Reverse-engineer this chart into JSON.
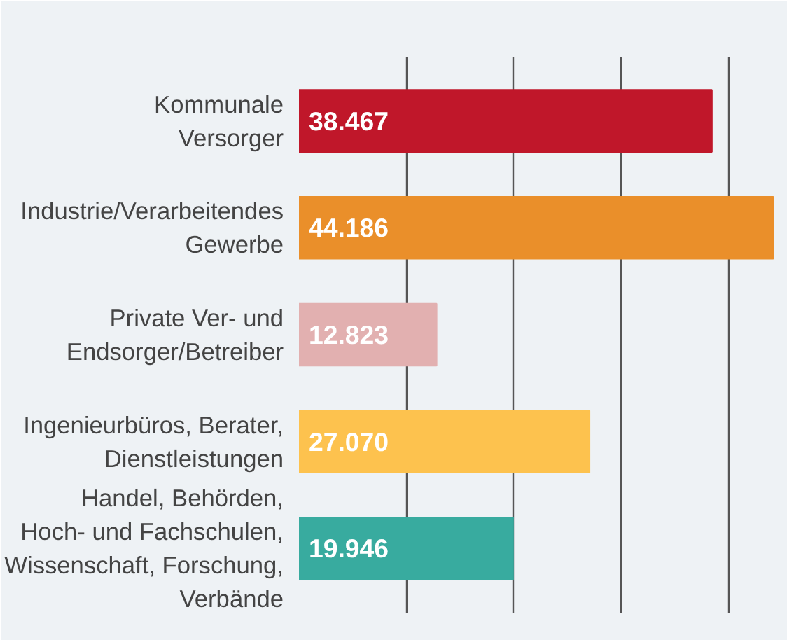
{
  "chart_data": {
    "type": "bar",
    "orientation": "horizontal",
    "categories": [
      "Kommunale\nVersorger",
      "Industrie/Verarbeitendes\nGewerbe",
      "Private Ver- und\nEndsorger/Betreiber",
      "Ingenieurbüros, Berater,\nDienstleistungen",
      "Handel, Behörden,\nHoch- und Fachschulen,\nWissenschaft, Forschung,\nVerbände"
    ],
    "values": [
      38467,
      44186,
      12823,
      27070,
      19946
    ],
    "value_labels": [
      "38.467",
      "44.186",
      "12.823",
      "27.070",
      "19.946"
    ],
    "colors": [
      "#c0172a",
      "#ea8f2a",
      "#e2b0b0",
      "#fdc24e",
      "#38ab9f"
    ],
    "xlim": [
      0,
      45000
    ],
    "xticks": [
      {
        "value": 0,
        "label": null
      },
      {
        "value": 10000,
        "label": null
      },
      {
        "value": 20000,
        "label": null
      },
      {
        "value": 30000,
        "label": null
      },
      {
        "value": 40000,
        "label": null
      }
    ],
    "grid": "x",
    "tick_labels": "y"
  }
}
